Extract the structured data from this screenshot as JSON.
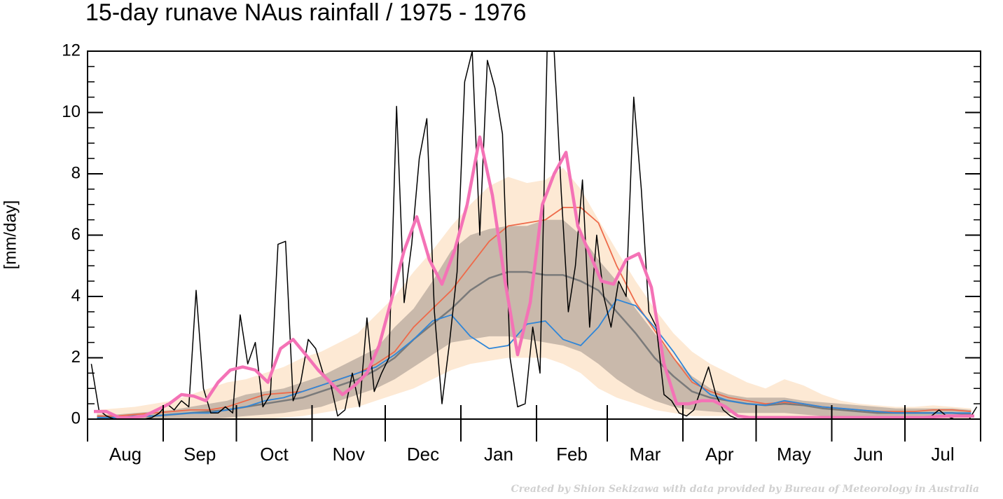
{
  "chart_data": {
    "type": "line",
    "title": "15-day runave NAus rainfall  /  1975 - 1976",
    "ylabel": "[mm/day]",
    "footer": "Created by Shion Sekizawa with data provided by Bureau of Meteorology in Australia",
    "categories": [
      "Aug",
      "Sep",
      "Oct",
      "Nov",
      "Dec",
      "Jan",
      "Feb",
      "Mar",
      "Apr",
      "May",
      "Jun",
      "Jul"
    ],
    "ylim": [
      0,
      12
    ],
    "yticks": [
      0,
      2,
      4,
      6,
      8,
      10,
      12
    ],
    "bands": [
      {
        "color": "#fde9d4",
        "lower": [
          [
            0,
            0,
            0,
            0
          ],
          [
            0,
            0,
            0,
            0
          ],
          [
            0,
            0,
            0.05,
            0.1
          ],
          [
            0.2,
            0.3,
            0.4,
            0.6
          ],
          [
            0.8,
            1.0,
            1.3,
            1.6
          ],
          [
            1.8,
            1.9,
            2.0,
            2.0
          ],
          [
            2.0,
            1.8,
            1.5,
            1.0
          ],
          [
            0.7,
            0.5,
            0.3,
            0.2
          ],
          [
            0.1,
            0.1,
            0.1,
            0.05
          ],
          [
            0.05,
            0.05,
            0.05,
            0.05
          ],
          [
            0,
            0,
            0,
            0
          ],
          [
            0,
            0,
            0,
            0
          ]
        ],
        "upper": [
          [
            0.3,
            0.35,
            0.4,
            0.5
          ],
          [
            0.6,
            0.8,
            1.0,
            1.2
          ],
          [
            1.3,
            1.5,
            1.7,
            2.0
          ],
          [
            2.2,
            2.5,
            2.8,
            3.4
          ],
          [
            4.0,
            4.8,
            5.5,
            6.3
          ],
          [
            7.0,
            7.6,
            7.9,
            7.7
          ],
          [
            7.8,
            8.2,
            7.5,
            6.5
          ],
          [
            5.5,
            4.5,
            3.6,
            2.8
          ],
          [
            2.2,
            1.8,
            1.5,
            1.2
          ],
          [
            1.0,
            1.3,
            1.1,
            0.8
          ],
          [
            0.6,
            0.5,
            0.45,
            0.4
          ],
          [
            0.4,
            0.45,
            0.4,
            0.35
          ]
        ]
      },
      {
        "color": "#c9b9ab",
        "lower": [
          [
            0,
            0,
            0,
            0
          ],
          [
            0,
            0,
            0,
            0.05
          ],
          [
            0.1,
            0.15,
            0.2,
            0.3
          ],
          [
            0.4,
            0.6,
            0.8,
            1.0
          ],
          [
            1.3,
            1.7,
            2.1,
            2.5
          ],
          [
            2.6,
            2.7,
            2.7,
            2.6
          ],
          [
            2.5,
            2.4,
            2.2,
            1.8
          ],
          [
            1.3,
            0.9,
            0.6,
            0.4
          ],
          [
            0.3,
            0.25,
            0.2,
            0.2
          ],
          [
            0.2,
            0.2,
            0.15,
            0.1
          ],
          [
            0.1,
            0.1,
            0.05,
            0.05
          ],
          [
            0.05,
            0.05,
            0.05,
            0.05
          ]
        ],
        "upper": [
          [
            0.15,
            0.15,
            0.2,
            0.25
          ],
          [
            0.3,
            0.4,
            0.5,
            0.6
          ],
          [
            0.8,
            0.9,
            1.0,
            1.2
          ],
          [
            1.4,
            1.7,
            2.0,
            2.3
          ],
          [
            3.0,
            3.6,
            4.5,
            5.5
          ],
          [
            6.0,
            6.2,
            6.3,
            6.3
          ],
          [
            6.5,
            6.5,
            6.0,
            5.2
          ],
          [
            4.5,
            3.6,
            2.8,
            2.0
          ],
          [
            1.4,
            1.0,
            0.8,
            0.7
          ],
          [
            0.7,
            0.7,
            0.6,
            0.55
          ],
          [
            0.5,
            0.45,
            0.4,
            0.35
          ],
          [
            0.35,
            0.35,
            0.35,
            0.3
          ]
        ]
      }
    ],
    "series": [
      {
        "color": "#7a7a7a",
        "width": 2.5,
        "values": [
          [
            0.05,
            0.05,
            0.1,
            0.1
          ],
          [
            0.15,
            0.2,
            0.25,
            0.3
          ],
          [
            0.4,
            0.5,
            0.6,
            0.7
          ],
          [
            0.9,
            1.1,
            1.3,
            1.6
          ],
          [
            2.0,
            2.6,
            3.1,
            3.6
          ],
          [
            4.2,
            4.6,
            4.8,
            4.8
          ],
          [
            4.7,
            4.7,
            4.5,
            4.2
          ],
          [
            3.5,
            2.8,
            2.0,
            1.4
          ],
          [
            0.9,
            0.7,
            0.6,
            0.5
          ],
          [
            0.45,
            0.5,
            0.45,
            0.35
          ],
          [
            0.3,
            0.25,
            0.2,
            0.2
          ],
          [
            0.2,
            0.2,
            0.2,
            0.15
          ]
        ]
      },
      {
        "color": "#ee6a4a",
        "width": 1.8,
        "values": [
          [
            0.1,
            0.1,
            0.15,
            0.2
          ],
          [
            0.25,
            0.3,
            0.3,
            0.4
          ],
          [
            0.6,
            0.8,
            0.85,
            0.9
          ],
          [
            1.1,
            1.3,
            1.5,
            1.8
          ],
          [
            2.2,
            3.0,
            3.6,
            4.2
          ],
          [
            5.0,
            5.8,
            6.3,
            6.4
          ],
          [
            6.5,
            6.9,
            6.9,
            6.4
          ],
          [
            5.0,
            3.8,
            2.9,
            2.0
          ],
          [
            1.2,
            0.9,
            0.7,
            0.6
          ],
          [
            0.5,
            0.55,
            0.5,
            0.4
          ],
          [
            0.35,
            0.3,
            0.25,
            0.25
          ],
          [
            0.25,
            0.3,
            0.3,
            0.25
          ]
        ]
      },
      {
        "color": "#2f86d8",
        "width": 1.8,
        "values": [
          [
            0.05,
            0.05,
            0.1,
            0.1
          ],
          [
            0.15,
            0.2,
            0.2,
            0.3
          ],
          [
            0.4,
            0.6,
            0.7,
            0.9
          ],
          [
            1.1,
            1.3,
            1.5,
            1.7
          ],
          [
            2.1,
            2.6,
            3.2,
            3.4
          ],
          [
            2.7,
            2.3,
            2.4,
            3.1
          ],
          [
            3.2,
            2.6,
            2.4,
            3.0
          ],
          [
            3.9,
            3.7,
            3.0,
            2.2
          ],
          [
            1.3,
            0.8,
            0.6,
            0.5
          ],
          [
            0.45,
            0.6,
            0.5,
            0.4
          ],
          [
            0.35,
            0.3,
            0.25,
            0.2
          ],
          [
            0.2,
            0.2,
            0.2,
            0.2
          ]
        ]
      },
      {
        "color": "#000000",
        "width": 1.5,
        "values": [
          [
            1.8,
            0.3,
            0.1,
            0,
            0,
            0,
            0,
            0,
            0.05,
            0.2
          ],
          [
            0.5,
            0.3,
            0.6,
            0.4,
            4.2,
            1.0,
            0.2,
            0.2,
            0.4,
            0.2
          ],
          [
            3.4,
            1.8,
            2.5,
            0.4,
            0.8,
            5.7,
            5.8,
            0.6,
            1.2,
            2.6
          ],
          [
            2.3,
            1.5,
            1.2,
            0.1,
            0.3,
            1.5,
            0.4,
            3.3,
            0.9,
            1.5
          ],
          [
            2.0,
            10.2,
            3.8,
            5.7,
            8.5,
            9.8,
            3.5,
            0.5,
            2.5,
            4.8
          ],
          [
            11.0,
            12.0,
            6.0,
            11.7,
            10.8,
            9.3,
            2.0,
            0.4,
            0.5,
            3.0
          ],
          [
            1.5,
            12,
            12,
            7.4,
            3.5,
            5.0,
            7.8,
            3.0,
            6.0,
            4.0
          ],
          [
            3.0,
            4.5,
            4.0,
            10.5,
            7.5,
            3.5,
            3.0,
            0.8,
            0.6,
            0.2
          ],
          [
            0.1,
            0.3,
            1.0,
            1.7,
            0.8,
            0.3,
            0.1,
            0,
            0,
            0
          ],
          [
            0,
            0,
            0,
            0,
            0,
            0,
            0,
            0,
            0,
            0
          ],
          [
            0,
            0,
            0,
            0,
            0,
            0,
            0,
            0,
            0,
            0
          ],
          [
            0,
            0,
            0,
            0.1,
            0.3,
            0.1,
            0,
            0,
            0,
            0.4
          ]
        ]
      },
      {
        "color": "#f472b6",
        "width": 4.5,
        "values": [
          [
            0.25,
            0.25,
            0.05,
            0.05,
            0.1,
            0.3
          ],
          [
            0.5,
            0.8,
            0.75,
            0.6,
            1.2,
            1.6
          ],
          [
            1.7,
            1.6,
            1.2,
            2.3,
            2.6,
            2.1
          ],
          [
            1.6,
            1.2,
            0.8,
            1.1,
            1.5,
            2.4
          ],
          [
            3.9,
            5.5,
            6.6,
            5.2,
            4.4,
            5.5
          ],
          [
            7.0,
            9.2,
            7.3,
            4.5,
            2.1,
            3.8
          ],
          [
            7.0,
            8.0,
            8.7,
            6.3,
            5.4,
            4.5
          ],
          [
            4.4,
            5.2,
            5.4,
            4.3,
            1.8,
            0.5
          ],
          [
            0.5,
            0.6,
            0.6,
            0.4,
            0.1,
            0.05
          ],
          [
            0.05,
            0.05,
            0.05,
            0.05,
            0.05,
            0.05
          ],
          [
            0.05,
            0.05,
            0.05,
            0.05,
            0.05,
            0.05
          ],
          [
            0.05,
            0.05,
            0.08,
            0.1,
            0.1,
            0.1
          ]
        ]
      }
    ]
  }
}
